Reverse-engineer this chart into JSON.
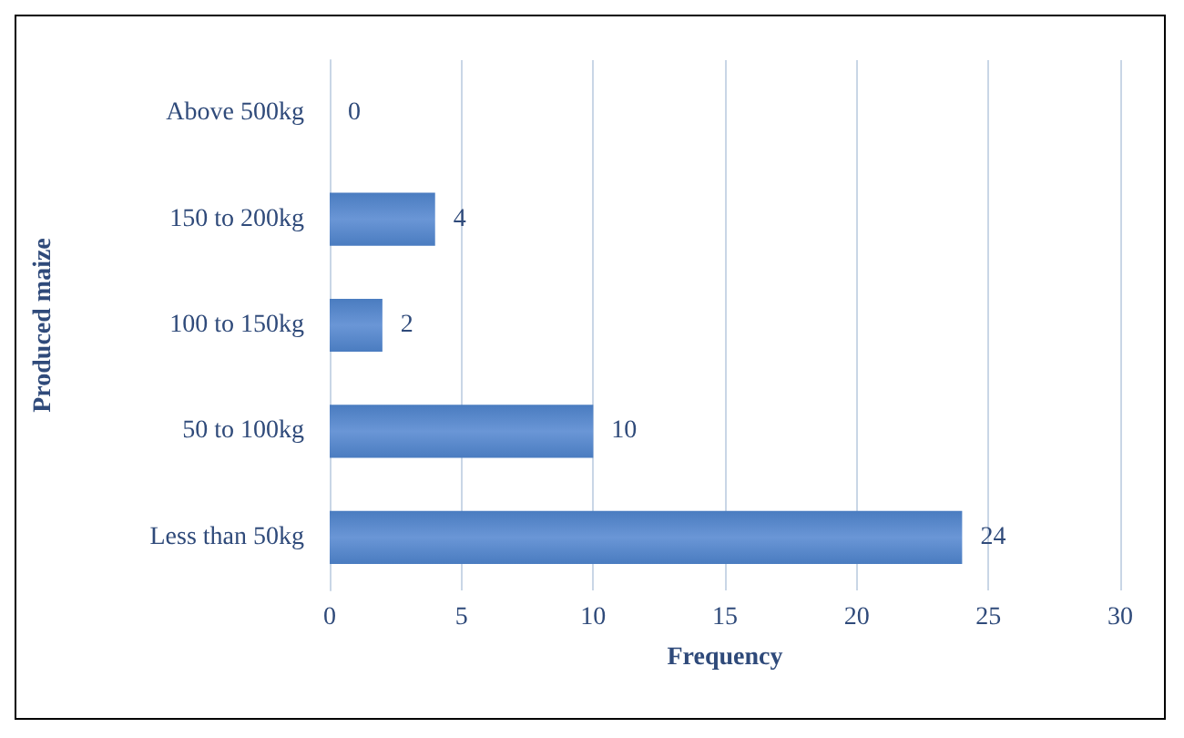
{
  "chart_data": {
    "type": "bar",
    "orientation": "horizontal",
    "xlabel": "Frequency",
    "ylabel": "Produced maize",
    "categories": [
      "Above 500kg",
      "150 to 200kg",
      "100 to 150kg",
      "50 to 100kg",
      "Less than 50kg"
    ],
    "values": [
      0,
      4,
      2,
      10,
      24
    ],
    "color": "#4a7cc0",
    "xlim": [
      0,
      30
    ],
    "xticks": [
      0,
      5,
      10,
      15,
      20,
      25,
      30
    ],
    "grid": "x",
    "data_labels": true
  }
}
